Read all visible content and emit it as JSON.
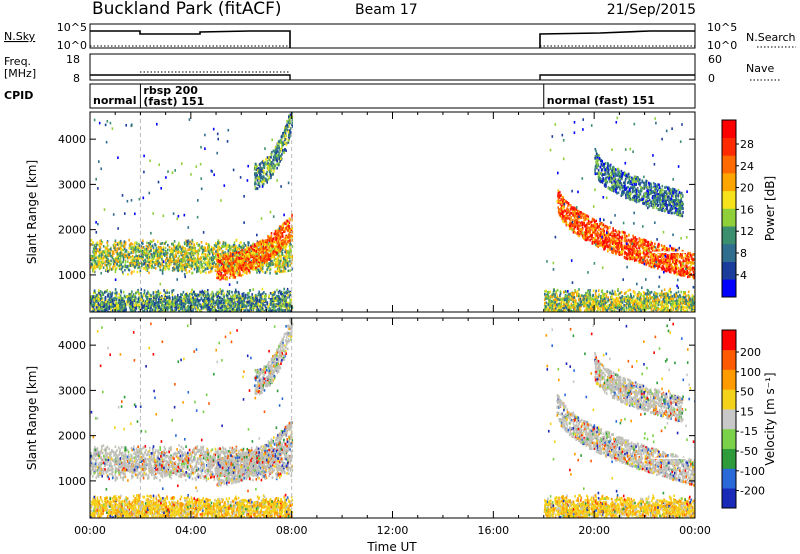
{
  "header": {
    "title": "Buckland Park (fitACF)",
    "beam": "Beam 17",
    "date": "21/Sep/2015"
  },
  "summary_panels": {
    "nsky_label": "N.Sky",
    "nsky_ticks": [
      "10^5",
      "10^0"
    ],
    "nsearch_label": "N.Search",
    "nsearch_ticks": [
      "10^5",
      "10^0"
    ],
    "freq_label": "Freq.",
    "freq_unit": "[MHz]",
    "freq_ticks": [
      "18",
      "8"
    ],
    "nave_label": "Nave",
    "nave_ticks": [
      "60",
      "0"
    ],
    "cpid_label": "CPID",
    "cpid_segments": [
      {
        "label": "normal",
        "start": 0,
        "end": 2
      },
      {
        "label": "rbsp 200",
        "label2": "(fast) 151",
        "start": 2,
        "end": 8
      },
      {
        "label": "normal (fast) 151",
        "start": 18,
        "end": 24
      }
    ]
  },
  "chart_data": [
    {
      "type": "heatmap",
      "name": "power",
      "ylabel": "Slant Range [km]",
      "xlabel": "",
      "xlim": [
        0,
        24
      ],
      "ylim": [
        180,
        4600
      ],
      "yticks": [
        1000,
        2000,
        3000,
        4000
      ],
      "data_intervals_ut": [
        [
          0,
          8
        ],
        [
          18,
          24
        ]
      ],
      "colorbar_label": "Power [dB]",
      "colorbar_ticks": [
        "28",
        "24",
        "20",
        "16",
        "12",
        "8",
        "4"
      ],
      "colorbar_range": [
        0,
        30
      ],
      "bands": [
        {
          "t_start": 0.0,
          "t_end": 8.0,
          "range_start": 1150,
          "range_end": 1700,
          "power": 14
        },
        {
          "t_start": 5.0,
          "t_end": 8.0,
          "range_start": 1200,
          "range_end": 2100,
          "power": 22
        },
        {
          "t_start": 6.5,
          "t_end": 8.0,
          "range_start": 3200,
          "range_end": 4500,
          "power": 10
        },
        {
          "t_start": 18.5,
          "t_end": 24.0,
          "range_start": 2800,
          "range_end": 1200,
          "power": 24
        },
        {
          "t_start": 20.0,
          "t_end": 23.5,
          "range_start": 3600,
          "range_end": 2600,
          "power": 8
        },
        {
          "t_start": 0.0,
          "t_end": 8.0,
          "range_start": 200,
          "range_end": 600,
          "power": 10
        },
        {
          "t_start": 18.0,
          "t_end": 24.0,
          "range_start": 200,
          "range_end": 600,
          "power": 14
        }
      ]
    },
    {
      "type": "heatmap",
      "name": "velocity",
      "ylabel": "Slant Range [km]",
      "xlabel": "Time UT",
      "xlim": [
        0,
        24
      ],
      "ylim": [
        180,
        4600
      ],
      "yticks": [
        1000,
        2000,
        3000,
        4000
      ],
      "xticks": [
        "00:00",
        "04:00",
        "08:00",
        "12:00",
        "16:00",
        "20:00",
        "00:00"
      ],
      "xtick_values": [
        0,
        4,
        8,
        12,
        16,
        20,
        24
      ],
      "data_intervals_ut": [
        [
          0,
          8
        ],
        [
          18,
          24
        ]
      ],
      "colorbar_label": "Velocity [m s⁻¹]",
      "colorbar_ticks": [
        "200",
        "100",
        "50",
        "15",
        "-15",
        "-50",
        "-100",
        "-200"
      ],
      "colorbar_range": [
        -250,
        250
      ]
    }
  ],
  "colors": {
    "power_scale": [
      "#0000ff",
      "#1a3c9a",
      "#2f6e8e",
      "#3b8e6e",
      "#8fcf3a",
      "#f5e21a",
      "#ffa500",
      "#ff6a00",
      "#ff2a00",
      "#ff0000"
    ],
    "velocity_scale": [
      "#1a2ab8",
      "#2a6ad8",
      "#2e9c3a",
      "#7ad14a",
      "#c8c8c8",
      "#f5d21a",
      "#ff9a00",
      "#ff5a00",
      "#ff0000"
    ],
    "ground_scatter": "#c0c0b8"
  }
}
